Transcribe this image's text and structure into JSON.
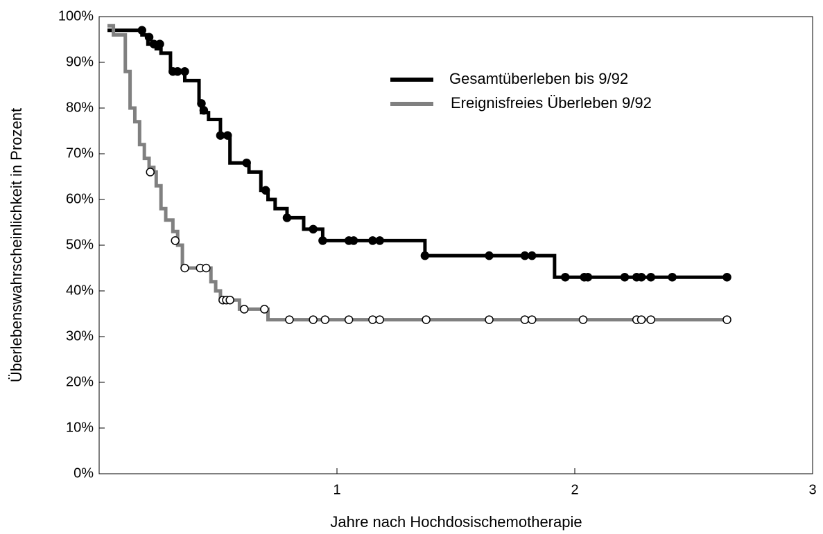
{
  "chart_data": {
    "type": "step",
    "xlabel": "Jahre nach Hochdosischemotherapie",
    "ylabel": "Überlebenswahrscheinlichkeit in Prozent",
    "xlim": [
      0,
      3
    ],
    "ylim": [
      0,
      100
    ],
    "xticks": [
      1,
      2,
      3
    ],
    "yticks": [
      {
        "value": 0,
        "label": "0%"
      },
      {
        "value": 10,
        "label": "10%"
      },
      {
        "value": 20,
        "label": "20%"
      },
      {
        "value": 30,
        "label": "30%"
      },
      {
        "value": 40,
        "label": "40%"
      },
      {
        "value": 50,
        "label": "50%"
      },
      {
        "value": 60,
        "label": "60%"
      },
      {
        "value": 70,
        "label": "70%"
      },
      {
        "value": 80,
        "label": "80%"
      },
      {
        "value": 90,
        "label": "90%"
      },
      {
        "value": 100,
        "label": "100%"
      }
    ],
    "series": [
      {
        "name": "Gesamtüberleben bis 9/92",
        "color": "#000000",
        "marker_fill": "#000000",
        "x": [
          0.035,
          0.18,
          0.205,
          0.24,
          0.26,
          0.3,
          0.36,
          0.42,
          0.43,
          0.46,
          0.51,
          0.55,
          0.63,
          0.68,
          0.71,
          0.74,
          0.79,
          0.86,
          0.94,
          1.37,
          1.915,
          2.64
        ],
        "values": [
          97,
          96,
          94,
          93,
          92,
          88,
          86,
          81,
          79,
          77.5,
          74,
          68,
          66,
          62,
          60,
          58,
          56,
          53.5,
          51,
          47.7,
          43,
          43
        ],
        "censored": {
          "x": [
            0.18,
            0.21,
            0.23,
            0.255,
            0.31,
            0.33,
            0.36,
            0.43,
            0.44,
            0.51,
            0.54,
            0.62,
            0.7,
            0.79,
            0.9,
            0.94,
            1.05,
            1.07,
            1.15,
            1.18,
            1.37,
            1.64,
            1.79,
            1.82,
            1.96,
            2.04,
            2.055,
            2.21,
            2.26,
            2.28,
            2.32,
            2.41,
            2.64
          ],
          "values": [
            97,
            95.5,
            94,
            94,
            88,
            88,
            88,
            81,
            79.5,
            74,
            74,
            68,
            62,
            56,
            53.5,
            51,
            51,
            51,
            51,
            51,
            47.7,
            47.7,
            47.7,
            47.7,
            43,
            43,
            43,
            43,
            43,
            43,
            43,
            43,
            43
          ]
        }
      },
      {
        "name": "Ereignisfreies Überleben 9/92",
        "color": "#808080",
        "marker_fill": "#ffffff",
        "x": [
          0.035,
          0.06,
          0.11,
          0.13,
          0.15,
          0.17,
          0.19,
          0.21,
          0.23,
          0.24,
          0.26,
          0.28,
          0.31,
          0.33,
          0.35,
          0.47,
          0.49,
          0.51,
          0.59,
          0.71,
          2.64
        ],
        "values": [
          98,
          96,
          88,
          80,
          77,
          72,
          69,
          67,
          66,
          63,
          58,
          55.5,
          53,
          50,
          45,
          42,
          40,
          38,
          36,
          33.7,
          33.7
        ],
        "censored": {
          "x": [
            0.215,
            0.32,
            0.36,
            0.425,
            0.45,
            0.52,
            0.535,
            0.55,
            0.61,
            0.695,
            0.8,
            0.9,
            0.95,
            1.05,
            1.15,
            1.18,
            1.375,
            1.64,
            1.79,
            1.82,
            2.035,
            2.26,
            2.28,
            2.32,
            2.64
          ],
          "values": [
            66,
            51,
            45,
            45,
            45,
            38,
            38,
            38,
            36,
            36,
            33.7,
            33.7,
            33.7,
            33.7,
            33.7,
            33.7,
            33.7,
            33.7,
            33.7,
            33.7,
            33.7,
            33.7,
            33.7,
            33.7,
            33.7
          ]
        }
      }
    ]
  }
}
